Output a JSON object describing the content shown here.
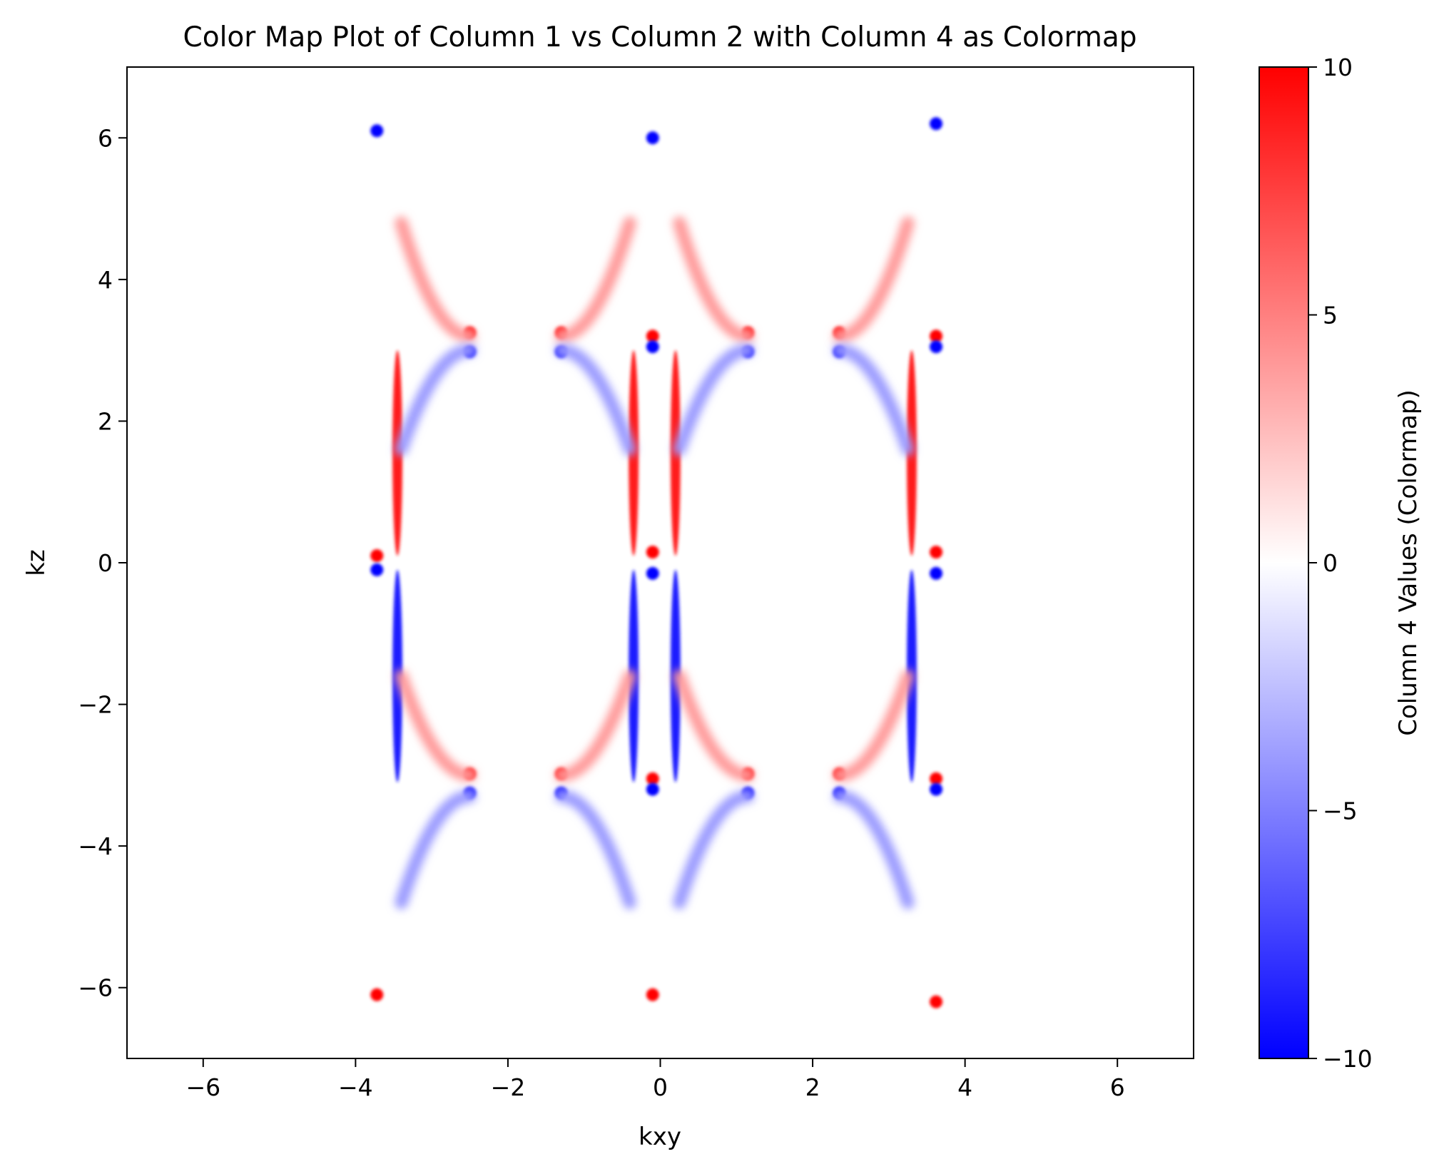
{
  "chart_data": {
    "type": "heatmap",
    "title": "Color Map Plot of Column 1 vs Column 2 with Column 4 as Colormap",
    "xlabel": "kxy",
    "ylabel": "kz",
    "xlim": [
      -7,
      7
    ],
    "ylim": [
      -7,
      7
    ],
    "x_ticks": [
      -6,
      -4,
      -2,
      0,
      2,
      4,
      6
    ],
    "x_tick_labels": [
      "−6",
      "−4",
      "−2",
      "0",
      "2",
      "4",
      "6"
    ],
    "y_ticks": [
      -6,
      -4,
      -2,
      0,
      2,
      4,
      6
    ],
    "y_tick_labels": [
      "−6",
      "−4",
      "−2",
      "0",
      "2",
      "4",
      "6"
    ],
    "grid": false,
    "data_extent": {
      "x": [
        -3.72,
        3.65
      ],
      "z": [
        -6.28,
        6.28
      ]
    },
    "colormap": {
      "name": "bwr",
      "low_color": "#0000ff",
      "mid_color": "#ffffff",
      "high_color": "#ff0000"
    },
    "colorbar": {
      "label": "Column 4 Values (Colormap)",
      "range": [
        -10,
        10
      ],
      "ticks": [
        10,
        5,
        0,
        -5,
        -10
      ],
      "tick_labels": [
        "10",
        "5",
        "0",
        "−5",
        "−10"
      ]
    },
    "features": [
      {
        "kind": "arc",
        "x": -3.45,
        "z": [
          0.1,
          3.0
        ],
        "value": 9,
        "mirror": true
      },
      {
        "kind": "arc",
        "x": -0.35,
        "z": [
          0.1,
          3.0
        ],
        "value": 9,
        "mirror": true
      },
      {
        "kind": "arc",
        "x": 0.2,
        "z": [
          0.1,
          3.0
        ],
        "value": 9,
        "mirror": true
      },
      {
        "kind": "arc",
        "x": 3.3,
        "z": [
          0.1,
          3.0
        ],
        "value": 9,
        "mirror": true
      },
      {
        "kind": "arc",
        "x": -3.45,
        "z": [
          -3.1,
          -0.1
        ],
        "value": -9,
        "mirror": true
      },
      {
        "kind": "arc",
        "x": -0.35,
        "z": [
          -3.1,
          -0.1
        ],
        "value": -9,
        "mirror": true
      },
      {
        "kind": "arc",
        "x": 0.2,
        "z": [
          -3.1,
          -0.1
        ],
        "value": -9,
        "mirror": true
      },
      {
        "kind": "arc",
        "x": 3.3,
        "z": [
          -3.1,
          -0.1
        ],
        "value": -9,
        "mirror": true
      },
      {
        "kind": "spot",
        "x": 3.62,
        "z": 6.2,
        "value": -10
      },
      {
        "kind": "spot",
        "x": 3.62,
        "z": 3.2,
        "value": 10
      },
      {
        "kind": "spot",
        "x": 3.62,
        "z": 3.05,
        "value": -10
      },
      {
        "kind": "spot",
        "x": 3.62,
        "z": 0.15,
        "value": 10
      },
      {
        "kind": "spot",
        "x": 3.62,
        "z": -0.15,
        "value": -10
      },
      {
        "kind": "spot",
        "x": 3.62,
        "z": -3.05,
        "value": 10
      },
      {
        "kind": "spot",
        "x": 3.62,
        "z": -3.2,
        "value": -10
      },
      {
        "kind": "spot",
        "x": 3.62,
        "z": -6.2,
        "value": 10
      },
      {
        "kind": "spot",
        "x": -0.1,
        "z": 6.0,
        "value": -10
      },
      {
        "kind": "spot",
        "x": -0.1,
        "z": 3.2,
        "value": 10
      },
      {
        "kind": "spot",
        "x": -0.1,
        "z": 3.05,
        "value": -10
      },
      {
        "kind": "spot",
        "x": -0.1,
        "z": 0.15,
        "value": 10
      },
      {
        "kind": "spot",
        "x": -0.1,
        "z": -0.15,
        "value": -10
      },
      {
        "kind": "spot",
        "x": -0.1,
        "z": -3.05,
        "value": 10
      },
      {
        "kind": "spot",
        "x": -0.1,
        "z": -3.2,
        "value": -10
      },
      {
        "kind": "spot",
        "x": -0.1,
        "z": -6.1,
        "value": 10
      },
      {
        "kind": "spot",
        "x": -3.72,
        "z": 6.1,
        "value": -10
      },
      {
        "kind": "spot",
        "x": -3.72,
        "z": 0.1,
        "value": 10
      },
      {
        "kind": "spot",
        "x": -3.72,
        "z": -0.1,
        "value": -10
      },
      {
        "kind": "spot",
        "x": -3.72,
        "z": -6.1,
        "value": 10
      },
      {
        "kind": "spot",
        "x": -2.5,
        "z": 3.25,
        "value": 9
      },
      {
        "kind": "spot",
        "x": -1.3,
        "z": 3.25,
        "value": 9
      },
      {
        "kind": "spot",
        "x": 1.15,
        "z": 3.25,
        "value": 9
      },
      {
        "kind": "spot",
        "x": 2.35,
        "z": 3.25,
        "value": 9
      },
      {
        "kind": "spot",
        "x": -2.5,
        "z": 2.98,
        "value": -9
      },
      {
        "kind": "spot",
        "x": -1.3,
        "z": 2.98,
        "value": -9
      },
      {
        "kind": "spot",
        "x": 1.15,
        "z": 2.98,
        "value": -9
      },
      {
        "kind": "spot",
        "x": 2.35,
        "z": 2.98,
        "value": -9
      },
      {
        "kind": "spot",
        "x": -2.5,
        "z": -2.98,
        "value": 9
      },
      {
        "kind": "spot",
        "x": -1.3,
        "z": -2.98,
        "value": 9
      },
      {
        "kind": "spot",
        "x": 1.15,
        "z": -2.98,
        "value": 9
      },
      {
        "kind": "spot",
        "x": 2.35,
        "z": -2.98,
        "value": 9
      },
      {
        "kind": "spot",
        "x": -2.5,
        "z": -3.25,
        "value": -9
      },
      {
        "kind": "spot",
        "x": -1.3,
        "z": -3.25,
        "value": -9
      },
      {
        "kind": "spot",
        "x": 1.15,
        "z": -3.25,
        "value": -9
      },
      {
        "kind": "spot",
        "x": 2.35,
        "z": -3.25,
        "value": -9
      },
      {
        "kind": "streak",
        "x": [
          -3.4,
          -2.5
        ],
        "z": [
          4.8,
          3.2
        ],
        "value": 4
      },
      {
        "kind": "streak",
        "x": [
          -0.4,
          -1.3
        ],
        "z": [
          4.8,
          3.2
        ],
        "value": 4
      },
      {
        "kind": "streak",
        "x": [
          0.25,
          1.15
        ],
        "z": [
          4.8,
          3.2
        ],
        "value": 4
      },
      {
        "kind": "streak",
        "x": [
          3.25,
          2.35
        ],
        "z": [
          4.8,
          3.2
        ],
        "value": 4
      },
      {
        "kind": "streak",
        "x": [
          -3.4,
          -2.5
        ],
        "z": [
          1.6,
          3.0
        ],
        "value": -4
      },
      {
        "kind": "streak",
        "x": [
          -0.4,
          -1.3
        ],
        "z": [
          1.6,
          3.0
        ],
        "value": -4
      },
      {
        "kind": "streak",
        "x": [
          0.25,
          1.15
        ],
        "z": [
          1.6,
          3.0
        ],
        "value": -4
      },
      {
        "kind": "streak",
        "x": [
          3.25,
          2.35
        ],
        "z": [
          1.6,
          3.0
        ],
        "value": -4
      },
      {
        "kind": "streak",
        "x": [
          -3.4,
          -2.5
        ],
        "z": [
          -1.6,
          -3.0
        ],
        "value": 4
      },
      {
        "kind": "streak",
        "x": [
          -0.4,
          -1.3
        ],
        "z": [
          -1.6,
          -3.0
        ],
        "value": 4
      },
      {
        "kind": "streak",
        "x": [
          0.25,
          1.15
        ],
        "z": [
          -1.6,
          -3.0
        ],
        "value": 4
      },
      {
        "kind": "streak",
        "x": [
          3.25,
          2.35
        ],
        "z": [
          -1.6,
          -3.0
        ],
        "value": 4
      },
      {
        "kind": "streak",
        "x": [
          -3.4,
          -2.5
        ],
        "z": [
          -4.8,
          -3.3
        ],
        "value": -4
      },
      {
        "kind": "streak",
        "x": [
          -0.4,
          -1.3
        ],
        "z": [
          -4.8,
          -3.3
        ],
        "value": -4
      },
      {
        "kind": "streak",
        "x": [
          0.25,
          1.15
        ],
        "z": [
          -4.8,
          -3.3
        ],
        "value": -4
      },
      {
        "kind": "streak",
        "x": [
          3.25,
          2.35
        ],
        "z": [
          -4.8,
          -3.3
        ],
        "value": -4
      }
    ]
  }
}
